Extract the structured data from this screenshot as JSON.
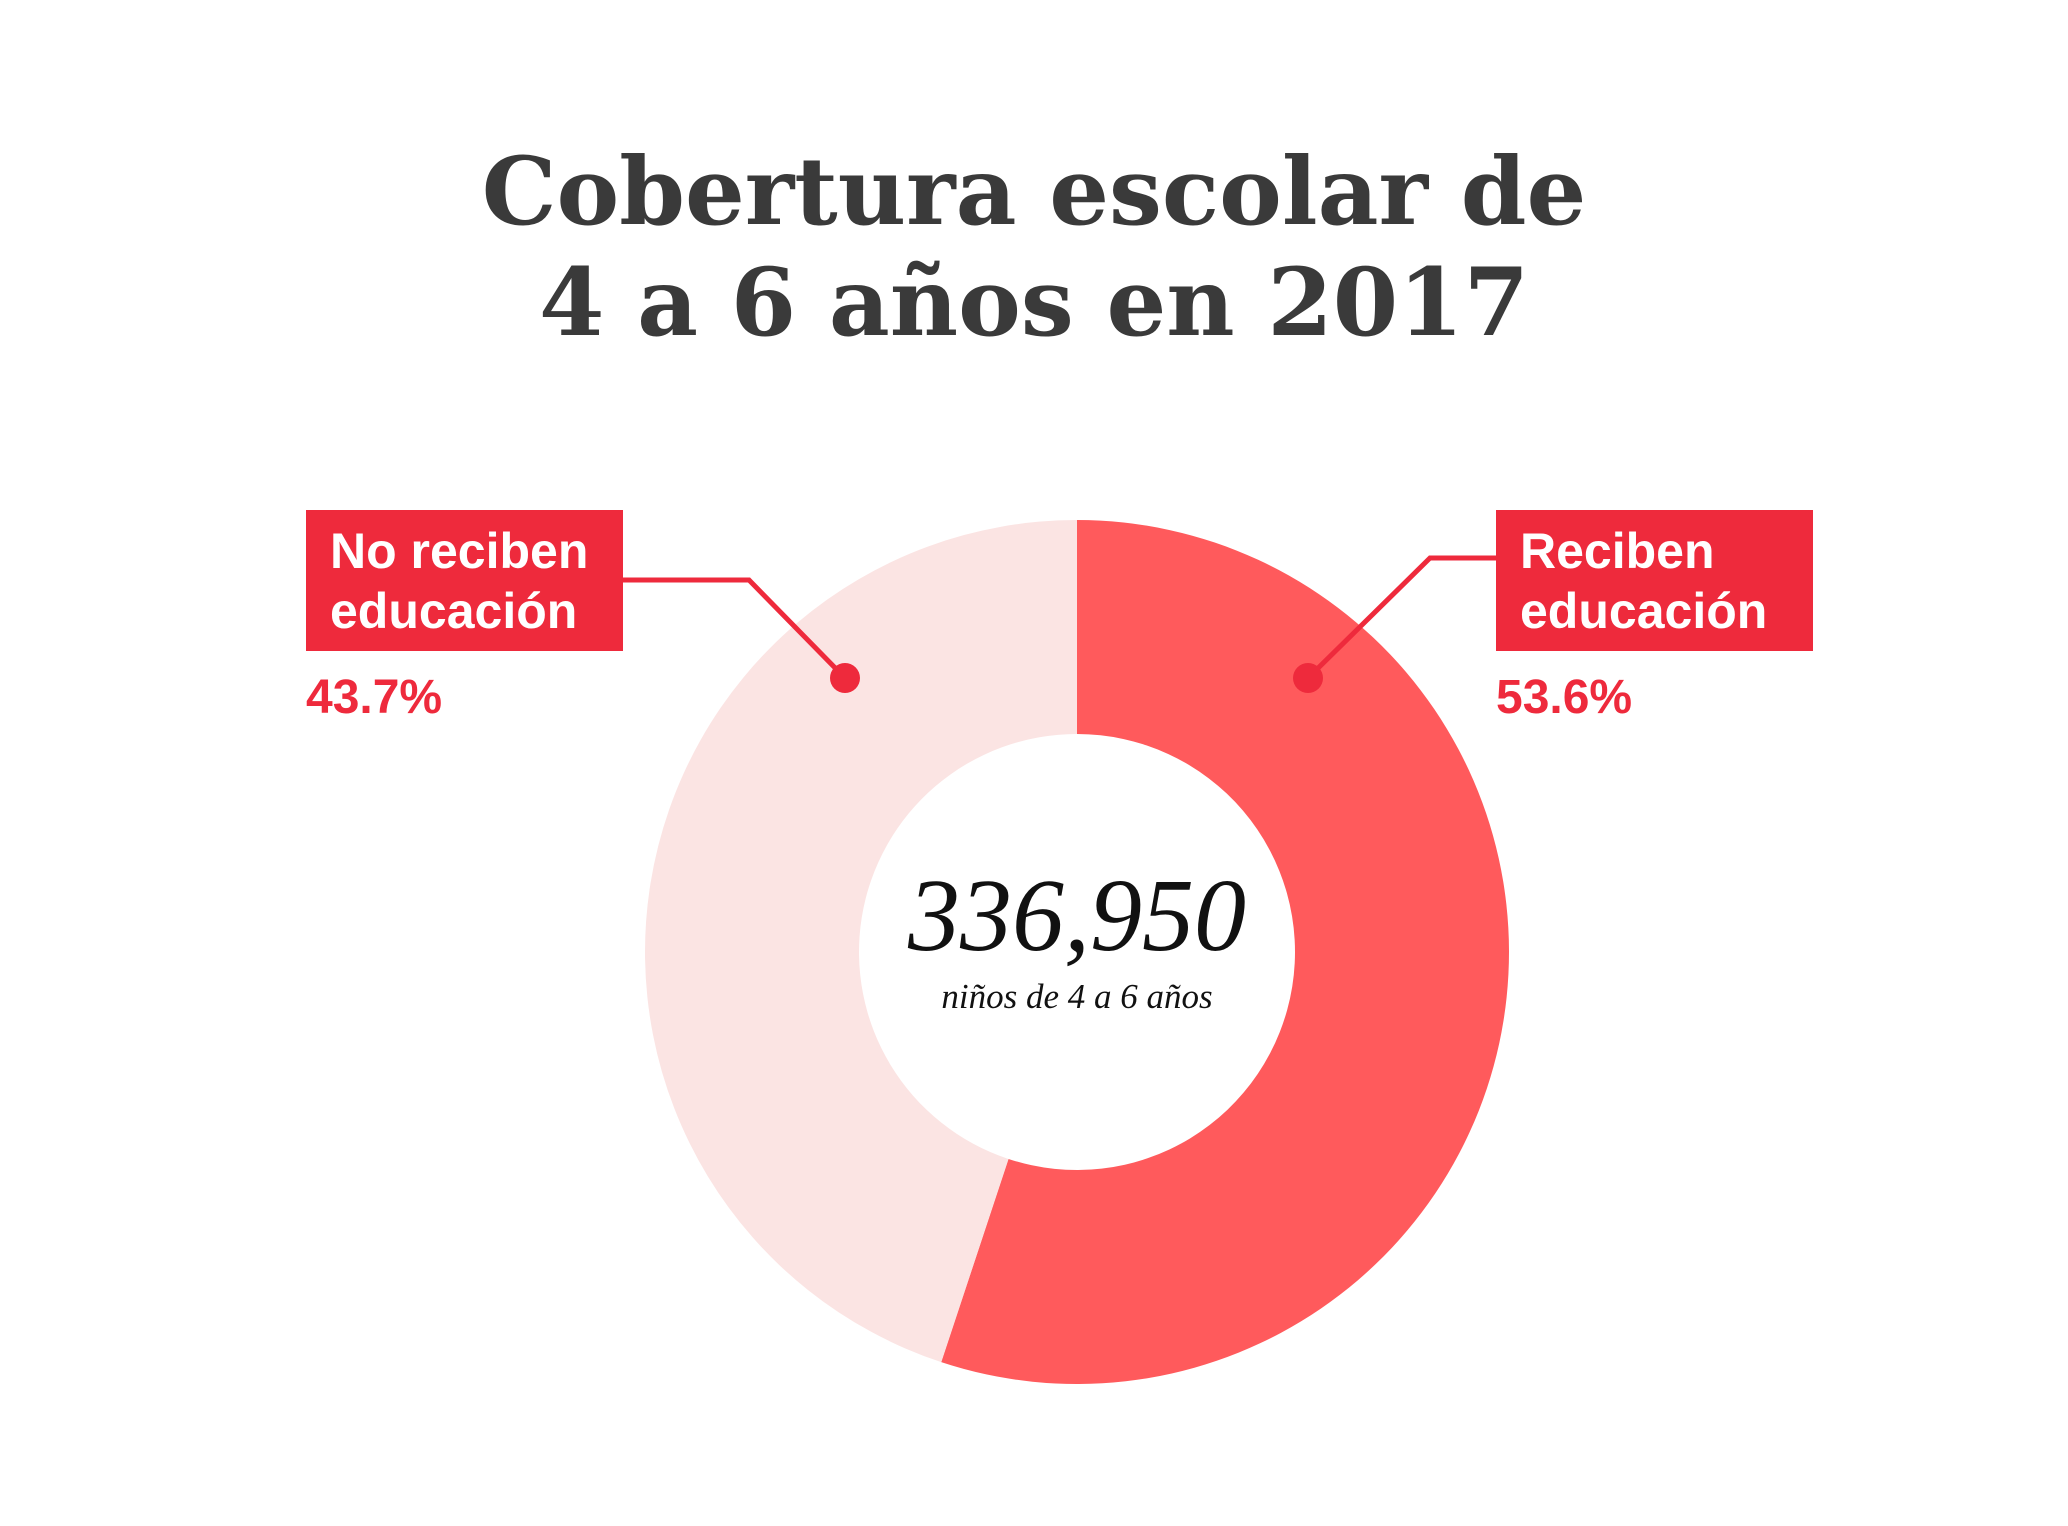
{
  "colors": {
    "accent": "#ee2a3c",
    "title": "#3a3a3a",
    "background": "#ffffff"
  },
  "chart_data": {
    "type": "pie",
    "title": [
      "Cobertura escolar de",
      "4 a 6 años en 2017"
    ],
    "center_value": "336,950",
    "center_label": "niños de 4 a 6 años",
    "slices": [
      {
        "label": [
          "Reciben",
          "educación"
        ],
        "value": 53.6,
        "value_label": "53.6%",
        "color": "#ff5a5c"
      },
      {
        "label": [
          "No reciben",
          "educación"
        ],
        "value": 43.7,
        "value_label": "43.7%",
        "color": "#fbe4e3"
      }
    ]
  }
}
